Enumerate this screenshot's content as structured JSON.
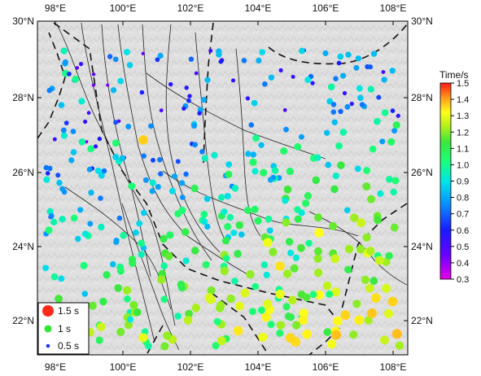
{
  "map": {
    "lon_labels": [
      "98°E",
      "100°E",
      "102°E",
      "104°E",
      "106°E",
      "108°E"
    ],
    "lat_labels": [
      "30°N",
      "28°N",
      "26°N",
      "24°N",
      "22°N"
    ],
    "lon_range": [
      97,
      108
    ],
    "lat_range": [
      21,
      30
    ]
  },
  "colorbar": {
    "title": "Time/s",
    "ticks": [
      "1.5",
      "1.4",
      "1.3",
      "1.2",
      "1.1",
      "1.0",
      "0.9",
      "0.8",
      "0.7",
      "0.6",
      "0.5",
      "0.4",
      "0.3"
    ],
    "range": [
      0.3,
      1.5
    ]
  },
  "legend": {
    "items": [
      {
        "label": "1.5 s",
        "color": "#ff2a1a"
      },
      {
        "label": "1 s",
        "color": "#33e633"
      },
      {
        "label": "0.5 s",
        "color": "#1a33ff"
      }
    ]
  }
}
